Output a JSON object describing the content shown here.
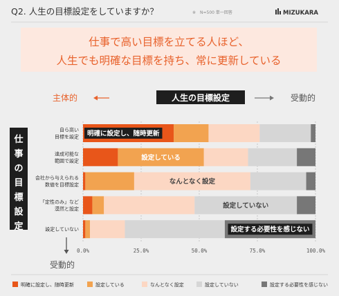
{
  "header": {
    "question": "Q2. 人生の目標設定をしていますか？",
    "sample_note": "※　N=500 単一回答",
    "brand": "MIZUKARA"
  },
  "headline": {
    "line1": "仕事で高い目標を立てる人ほど、",
    "line2": "人生でも明確な目標を持ち、常に更新している"
  },
  "axis_labels": {
    "left_active": "主体的",
    "center_title": "人生の目標設定",
    "right_passive": "受動的",
    "y_title": "仕事の目標設定",
    "bottom_passive": "受動的"
  },
  "colors": {
    "accent": "#E8622C",
    "s1": "#E8561A",
    "s2": "#F2A350",
    "s3": "#FCD7C3",
    "s4": "#D6D6D6",
    "s5": "#777777",
    "dark": "#1E1E1E",
    "bg": "#EEEEEE",
    "grid": "#BBBBBB"
  },
  "chart_data": {
    "type": "bar",
    "orientation": "horizontal-stacked-100",
    "categories": [
      [
        "自ら高い",
        "目標を設定"
      ],
      [
        "達成可能な",
        "範囲で設定"
      ],
      [
        "会社から与えられる",
        "数値を目標設定"
      ],
      [
        "「定性のみ」など",
        "漠然と設定"
      ],
      [
        "設定していない"
      ]
    ],
    "series": [
      {
        "name": "明確に設定し、随時更新",
        "color": "#E8561A",
        "values": [
          39,
          15,
          1,
          4,
          1
        ]
      },
      {
        "name": "設定している",
        "color": "#F2A350",
        "values": [
          15,
          37,
          21,
          5,
          2
        ]
      },
      {
        "name": "なんとなく設定",
        "color": "#FCD7C3",
        "values": [
          22,
          19,
          50,
          39,
          15
        ]
      },
      {
        "name": "設定していない",
        "color": "#D6D6D6",
        "values": [
          22,
          21,
          24,
          44,
          43
        ]
      },
      {
        "name": "設定する必要性を感じない",
        "color": "#777777",
        "values": [
          2,
          8,
          4,
          8,
          39
        ]
      }
    ],
    "bar_labels": [
      {
        "row": 0,
        "series": 0,
        "text": "明確に設定し、随時更新"
      },
      {
        "row": 1,
        "series": 1,
        "text": "設定している"
      },
      {
        "row": 2,
        "series": 2,
        "text": "なんとなく設定"
      },
      {
        "row": 3,
        "series": 3,
        "text": "設定していない"
      },
      {
        "row": 4,
        "series": 4,
        "text": "設定する必要性を感じない"
      }
    ],
    "xticks": [
      "0.0%",
      "25.0%",
      "50.0%",
      "75.0%",
      "100.0%"
    ],
    "xlim": [
      0,
      100
    ],
    "grid": true,
    "legend_position": "bottom"
  }
}
